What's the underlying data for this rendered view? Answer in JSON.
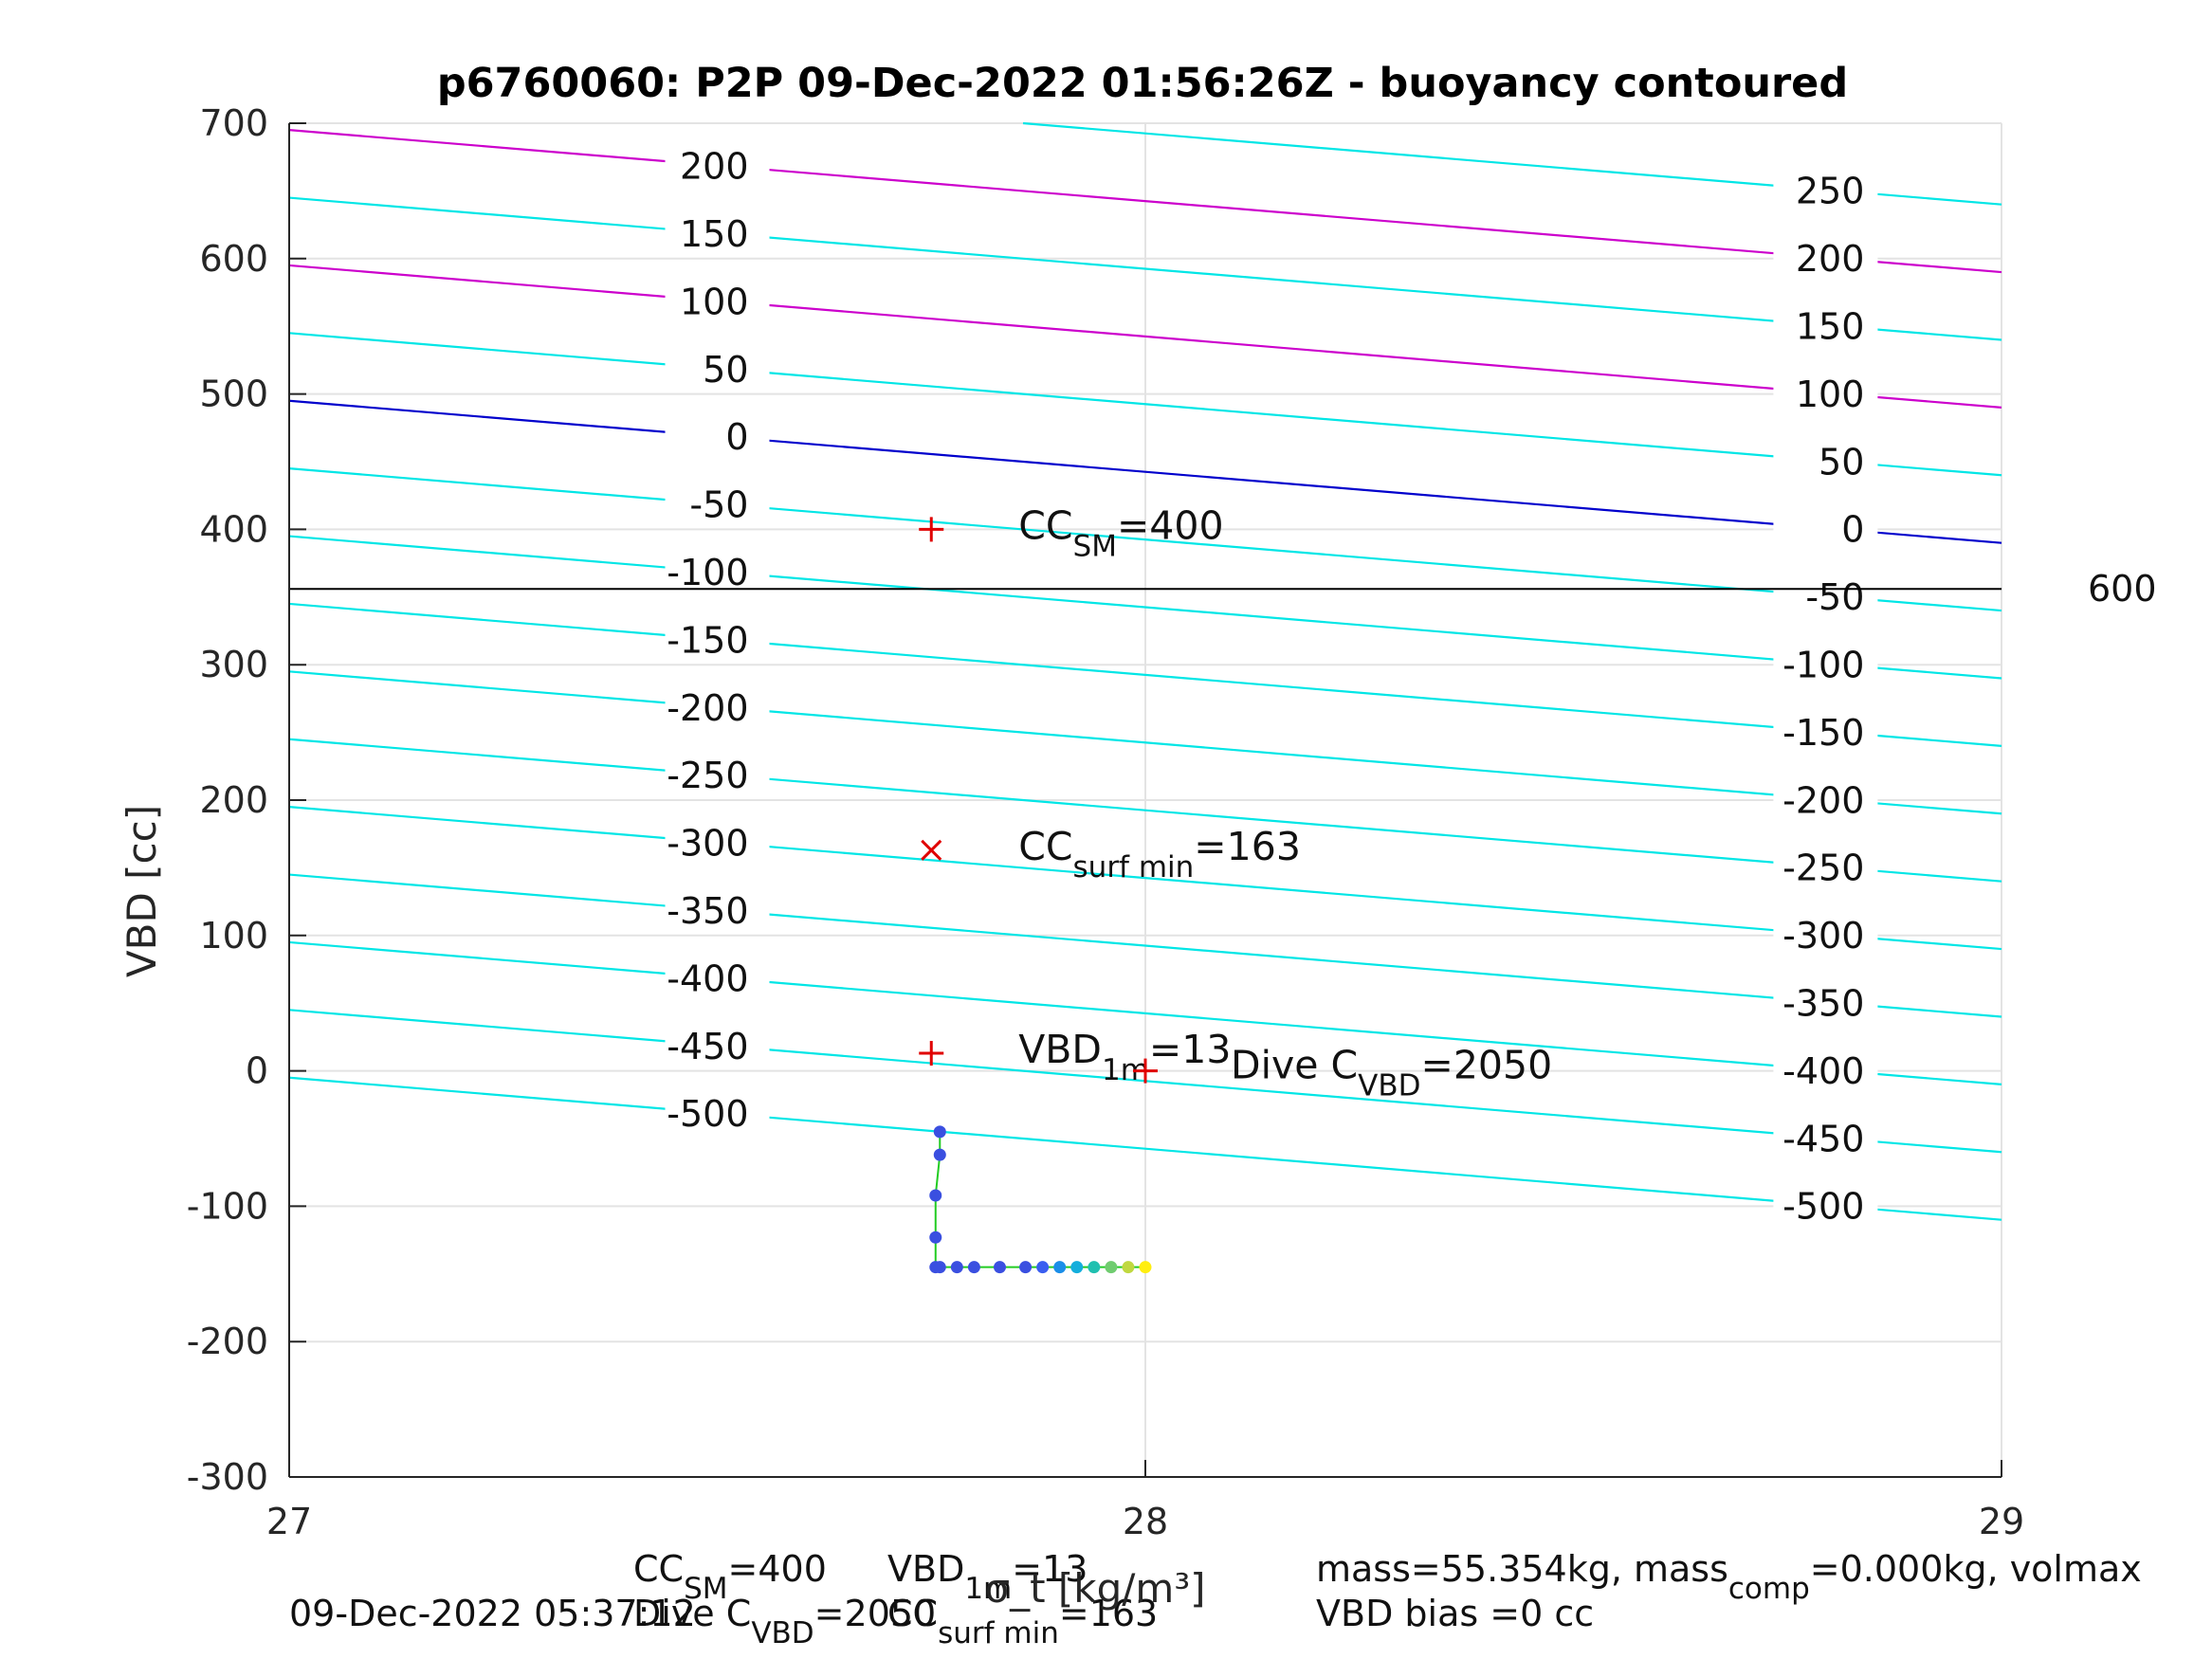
{
  "chart_data": {
    "type": "line",
    "title": "p6760060: P2P 09-Dec-2022 01:56:26Z - buoyancy contoured",
    "xlabel": "σ_t [kg/m³]",
    "ylabel": "VBD [cc]",
    "xlim": [
      27,
      29
    ],
    "ylim": [
      -300,
      700
    ],
    "x_ticks": [
      "27",
      "28",
      "29"
    ],
    "y_ticks": [
      "-300",
      "-200",
      "-100",
      "0",
      "100",
      "200",
      "300",
      "400",
      "500",
      "600",
      "700"
    ],
    "grid": true,
    "contour_levels": [
      -500,
      -450,
      -400,
      -350,
      -300,
      -250,
      -200,
      -150,
      -100,
      -50,
      0,
      50,
      100,
      150,
      200,
      250
    ],
    "contour_labels_left": [
      "200",
      "150",
      "100",
      "50",
      "0",
      "-50",
      "-100",
      "-150",
      "-200",
      "-250",
      "-300",
      "-350",
      "-400",
      "-450",
      "-500"
    ],
    "contour_labels_right": [
      "250",
      "200",
      "150",
      "100",
      "50",
      "0",
      "-50",
      "-100",
      "-150",
      "-200",
      "-250",
      "-300",
      "-350",
      "-400",
      "-450",
      "-500"
    ],
    "colors": {
      "contour": "#00e6e6",
      "zero_contour": "#0000cc",
      "highlight_contour": "#cc00cc",
      "marker": "#e00000",
      "profile_line": "#22cc22"
    },
    "highlight_levels": [
      100,
      200
    ],
    "zero_level": 0,
    "reference_line": {
      "vbd": 356,
      "label": "600"
    },
    "markers": [
      {
        "kind": "plus",
        "x": 27.75,
        "y": 400,
        "label_main": "CC",
        "label_sub": "SM",
        "label_rest": "=400"
      },
      {
        "kind": "cross",
        "x": 27.75,
        "y": 163,
        "label_main": "CC",
        "label_sub": "surf min",
        "label_rest": "=163"
      },
      {
        "kind": "plus",
        "x": 27.75,
        "y": 13,
        "label_main": "VBD",
        "label_sub": "1m",
        "label_rest": "=13"
      },
      {
        "kind": "plus",
        "x": 28.0,
        "y": 0,
        "label_main": "Dive C",
        "label_sub": "VBD",
        "label_rest": "=2050"
      }
    ],
    "profile": {
      "x": [
        27.76,
        27.76,
        27.755,
        27.755,
        27.755,
        27.76,
        27.78,
        27.8,
        27.83,
        27.86,
        27.88,
        27.9,
        27.92,
        27.94,
        27.96,
        27.98,
        28.0
      ],
      "y": [
        -45,
        -62,
        -92,
        -123,
        -145,
        -145,
        -145,
        -145,
        -145,
        -145,
        -145,
        -145,
        -145,
        -145,
        -145,
        -145,
        -145
      ],
      "gradient_colors": [
        "#3a4fe0",
        "#3a4fe0",
        "#3a4fe0",
        "#3a4fe0",
        "#3a4fe0",
        "#3a4fe0",
        "#3a4fe0",
        "#3a4fe0",
        "#3a4fe0",
        "#3a4fe0",
        "#3a5ef0",
        "#1a8ee8",
        "#14aedc",
        "#20c0b0",
        "#70cc70",
        "#c0d840",
        "#ffee10"
      ]
    }
  },
  "footer": {
    "line1_a_main": "CC",
    "line1_a_sub": "SM",
    "line1_a_rest": "=400",
    "line1_b_main": "VBD",
    "line1_b_sub": "1m",
    "line1_b_rest": "=13",
    "line1_c_main": "mass=55.354kg, mass",
    "line1_c_sub": "comp",
    "line1_c_rest": "=0.000kg, volmax",
    "line2_timestamp": "09-Dec-2022 05:37:12",
    "line2_a_main": "Dive C",
    "line2_a_sub": "VBD",
    "line2_a_rest": "=2050",
    "line2_b_main": "CC",
    "line2_b_sub": "surf min",
    "line2_b_rest": "=163",
    "line2_c": "VBD bias =0 cc"
  }
}
